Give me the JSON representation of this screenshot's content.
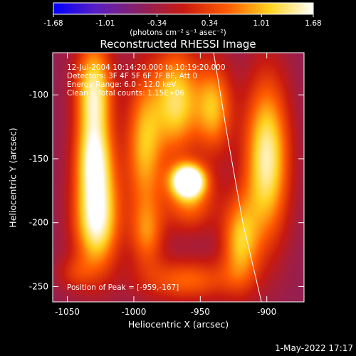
{
  "chart_data": {
    "type": "heatmap",
    "title": "Reconstructed RHESSI Image",
    "xlabel": "Heliocentric X (arcsec)",
    "ylabel": "Heliocentric Y (arcsec)",
    "xlim": [
      -1061,
      -872
    ],
    "ylim": [
      -262,
      -67
    ],
    "x_ticks": [
      -1050,
      -1000,
      -950,
      -900
    ],
    "y_ticks": [
      -100,
      -150,
      -200,
      -250
    ],
    "x_tick_labels": [
      "-1050",
      "-1000",
      "-950",
      "-900"
    ],
    "y_tick_labels": [
      "-100",
      "-150",
      "-200",
      "-250"
    ],
    "colorbar": {
      "ticks": [
        -1.68,
        -1.01,
        -0.34,
        0.34,
        1.01,
        1.68
      ],
      "tick_labels": [
        "-1.68",
        "-1.01",
        "-0.34",
        "0.34",
        "1.01",
        "1.68"
      ],
      "units_label": "(photons cm⁻² s⁻¹ asec⁻²)",
      "colors": [
        "#0000ff",
        "#5a1fc0",
        "#8a2060",
        "#c81a10",
        "#ff5a00",
        "#ffd21e",
        "#ffffff"
      ]
    },
    "annotations": [
      "12-Jul-2004 10:14:20.000 to 10:19:20.000",
      "Detectors: 3F 4F 5F 6F 7F 8F, Att 0",
      "Energy Range: 6.0 - 12.0 keV",
      "Clean    Total counts: 1.15E+06"
    ],
    "peak_label": "Position of Peak = [-959,-167]",
    "peak": {
      "x": -959,
      "y": -167
    },
    "limb_curve": [
      {
        "x": -940,
        "y": -67
      },
      {
        "x": -930,
        "y": -130
      },
      {
        "x": -918,
        "y": -200
      },
      {
        "x": -904,
        "y": -262
      }
    ],
    "blobs": [
      {
        "x": -1030,
        "y": -100,
        "sx": 10,
        "sy": 30,
        "v": 0.75
      },
      {
        "x": -1028,
        "y": -195,
        "sx": 12,
        "sy": 30,
        "v": 0.85
      },
      {
        "x": -1030,
        "y": -150,
        "sx": 10,
        "sy": 20,
        "v": 0.45
      },
      {
        "x": -992,
        "y": -140,
        "sx": 10,
        "sy": 40,
        "v": 0.55
      },
      {
        "x": -990,
        "y": -210,
        "sx": 9,
        "sy": 18,
        "v": 0.35
      },
      {
        "x": -968,
        "y": -105,
        "sx": 12,
        "sy": 30,
        "v": 0.65
      },
      {
        "x": -940,
        "y": -110,
        "sx": 10,
        "sy": 25,
        "v": 0.55
      },
      {
        "x": -959,
        "y": -167,
        "sx": 9,
        "sy": 9,
        "v": 1.0
      },
      {
        "x": -958,
        "y": -185,
        "sx": 14,
        "sy": 16,
        "v": 0.4
      },
      {
        "x": -900,
        "y": -150,
        "sx": 12,
        "sy": 45,
        "v": 0.75
      },
      {
        "x": -920,
        "y": -215,
        "sx": 10,
        "sy": 25,
        "v": 0.55
      },
      {
        "x": -960,
        "y": -245,
        "sx": 25,
        "sy": 12,
        "v": 0.4
      },
      {
        "x": -1045,
        "y": -240,
        "sx": 10,
        "sy": 10,
        "v": 0.2
      }
    ],
    "background_level": 0.18
  },
  "footer": {
    "date_label": "1-May-2022 17:17"
  }
}
